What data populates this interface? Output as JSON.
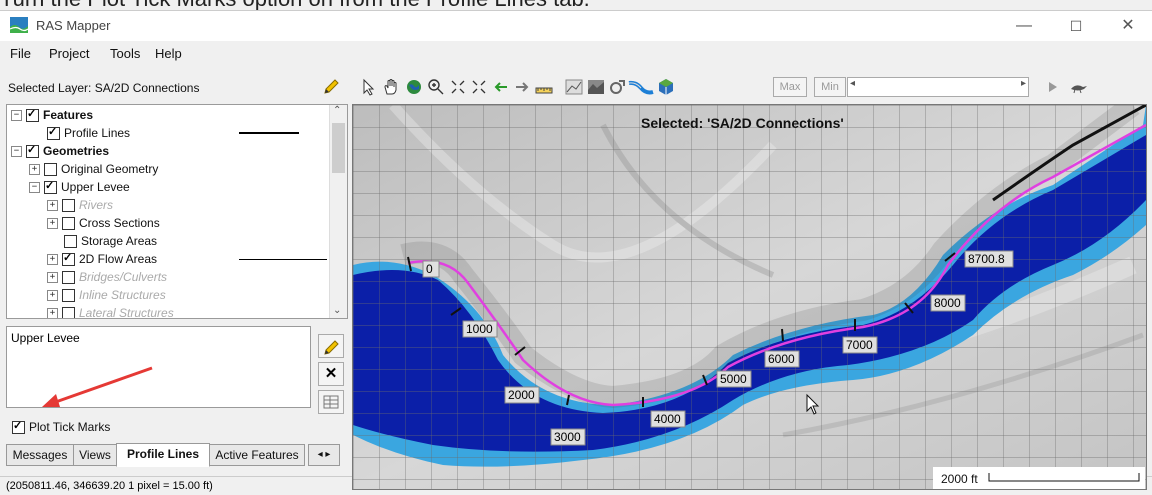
{
  "caption": "Turn the Plot Tick Marks option on from the Profile Lines tab.",
  "window": {
    "title": "RAS Mapper",
    "minimize": "—",
    "maximize": "☐",
    "close": "✕"
  },
  "menu": [
    "File",
    "Project",
    "Tools",
    "Help"
  ],
  "toolbar": {
    "selected_layer": "Selected Layer: SA/2D Connections",
    "max_label": "Max",
    "min_label": "Min"
  },
  "tree": {
    "features": "Features",
    "profile_lines": "Profile Lines",
    "geometries": "Geometries",
    "original_geometry": "Original Geometry",
    "upper_levee": "Upper Levee",
    "rivers": "Rivers",
    "cross_sections": "Cross Sections",
    "storage_areas": "Storage Areas",
    "flow_areas_2d": "2D Flow Areas",
    "bridges_culverts": "Bridges/Culverts",
    "inline_structures": "Inline Structures",
    "lateral_structures": "Lateral Structures"
  },
  "properties": {
    "name_value": "Upper Levee",
    "plot_tick_marks_label": "Plot Tick Marks",
    "plot_tick_marks_checked": true
  },
  "tabs": [
    "Messages",
    "Views",
    "Profile Lines",
    "Active Features"
  ],
  "active_tab": "Profile Lines",
  "status": "(2050811.46, 346639.20  1 pixel = 15.00 ft)",
  "map": {
    "selected_label": "Selected: 'SA/2D Connections'",
    "scale_label": "2000 ft",
    "stations": [
      "0",
      "1000",
      "2000",
      "3000",
      "4000",
      "5000",
      "6000",
      "7000",
      "8000",
      "8700.8"
    ],
    "colors": {
      "deep_water": "#0b1fa8",
      "shallow_water": "#3aa6e0",
      "profile_line": "#e040e0",
      "terrain": "#cfcfcf"
    }
  }
}
